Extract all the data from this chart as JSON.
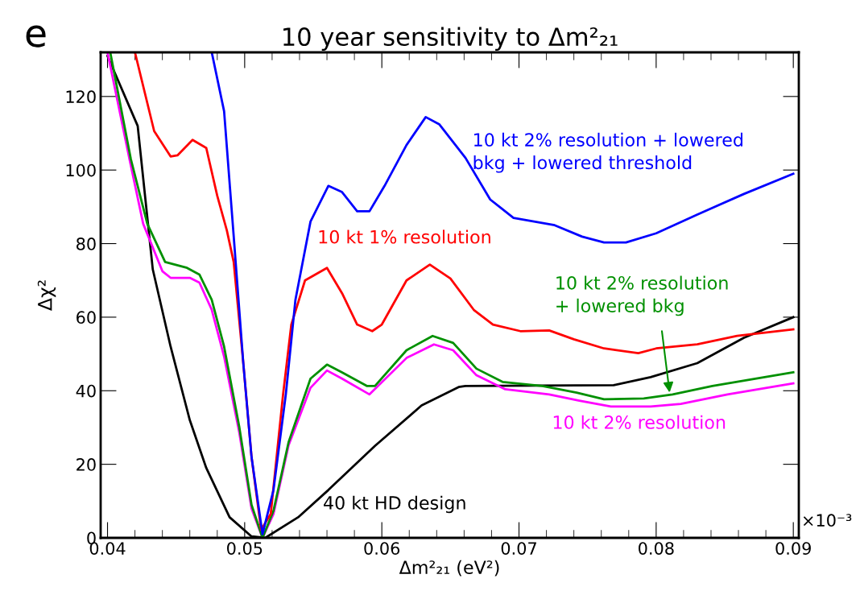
{
  "chart_data": {
    "type": "line",
    "title": "10 year sensitivity to Δm²₂₁",
    "xlabel": "Δm²₂₁ (eV²)",
    "ylabel": "Δχ²",
    "xlim": [
      0.0395,
      0.0904
    ],
    "xticks": [
      {
        "value": 0.04,
        "label": "0.04"
      },
      {
        "value": 0.05,
        "label": "0.05"
      },
      {
        "value": 0.06,
        "label": "0.06"
      },
      {
        "value": 0.07,
        "label": "0.07"
      },
      {
        "value": 0.08,
        "label": "0.08"
      },
      {
        "value": 0.09,
        "label": "0.09"
      }
    ],
    "ylim": [
      0,
      132
    ],
    "yticks": [
      0,
      20,
      40,
      60,
      80,
      100,
      120
    ],
    "grid": false,
    "legend": false,
    "marker": "none",
    "line_style": "solid",
    "annotations": [
      "×10⁻³",
      "e"
    ],
    "series": [
      {
        "name": "40 kt HD design",
        "color": "#000000",
        "x": [
          0.04,
          0.0422,
          0.0433,
          0.0446,
          0.046,
          0.0472,
          0.0489,
          0.0505,
          0.0515,
          0.0539,
          0.0561,
          0.0595,
          0.0629,
          0.0656,
          0.0661,
          0.0769,
          0.0796,
          0.083,
          0.0864,
          0.09
        ],
        "values": [
          131,
          112,
          73,
          52,
          32,
          19,
          5.6,
          0.4,
          0,
          5.6,
          13,
          25,
          36,
          41,
          41.3,
          41.5,
          43.7,
          47.5,
          54.4,
          60
        ]
      },
      {
        "name": "10 kt 2% resolution",
        "color": "#ff00ff",
        "x": [
          0.04,
          0.0416,
          0.0426,
          0.044,
          0.0446,
          0.046,
          0.0467,
          0.0476,
          0.0485,
          0.0496,
          0.0505,
          0.0513,
          0.0521,
          0.0532,
          0.0548,
          0.056,
          0.0571,
          0.0591,
          0.0618,
          0.0638,
          0.0652,
          0.0669,
          0.069,
          0.0722,
          0.0744,
          0.0767,
          0.0796,
          0.0818,
          0.0852,
          0.09
        ],
        "values": [
          132,
          103,
          85.4,
          72.5,
          70.7,
          70.7,
          69.4,
          62,
          49.3,
          28.8,
          8,
          0,
          6.5,
          25.2,
          40.8,
          45.5,
          43.3,
          39,
          48.9,
          52.6,
          51,
          44.2,
          40.4,
          39,
          37.3,
          35.7,
          35.7,
          36.4,
          39,
          42
        ]
      },
      {
        "name": "10 kt 2% resolution\n+ lowered bkg",
        "color": "#009000",
        "x": [
          0.0402,
          0.0417,
          0.0429,
          0.0442,
          0.0458,
          0.0467,
          0.0476,
          0.0485,
          0.0496,
          0.0505,
          0.0513,
          0.0521,
          0.0532,
          0.0548,
          0.056,
          0.0571,
          0.0589,
          0.0595,
          0.0618,
          0.0637,
          0.0652,
          0.0669,
          0.0688,
          0.0717,
          0.0742,
          0.0762,
          0.0791,
          0.0812,
          0.0841,
          0.09
        ],
        "values": [
          132,
          103,
          85.4,
          75,
          73.4,
          71.6,
          64.7,
          52,
          30.3,
          9,
          0,
          7.4,
          26,
          43.3,
          47.1,
          45,
          41.3,
          41.3,
          51,
          54.9,
          53,
          46,
          42.4,
          41.3,
          39.5,
          37.7,
          37.9,
          39,
          41.3,
          45
        ]
      },
      {
        "name": "10 kt 1% resolution",
        "color": "#ff0000",
        "x": [
          0.042,
          0.0434,
          0.0446,
          0.0451,
          0.0462,
          0.0472,
          0.048,
          0.0487,
          0.0492,
          0.0499,
          0.0505,
          0.0512,
          0.0519,
          0.0528,
          0.0534,
          0.0544,
          0.056,
          0.0571,
          0.0582,
          0.0593,
          0.06,
          0.0618,
          0.0635,
          0.065,
          0.0667,
          0.0681,
          0.0701,
          0.0722,
          0.074,
          0.0762,
          0.0787,
          0.08,
          0.083,
          0.0859,
          0.09
        ],
        "values": [
          132,
          110.6,
          103.7,
          104,
          108.2,
          106,
          93,
          83.6,
          75,
          47.5,
          22,
          2.2,
          6.5,
          39,
          58,
          70,
          73.4,
          66.5,
          58,
          56.2,
          58,
          70,
          74.3,
          70.5,
          62,
          58,
          56.2,
          56.4,
          54,
          51.5,
          50.2,
          51.5,
          52.6,
          54.9,
          56.7
        ]
      },
      {
        "name": "10 kt 2% resolution + lowered\nbkg + lowered threshold",
        "color": "#0000ff",
        "x": [
          0.0476,
          0.0485,
          0.0492,
          0.0499,
          0.0505,
          0.0513,
          0.0521,
          0.053,
          0.0537,
          0.0548,
          0.0561,
          0.0571,
          0.0582,
          0.0591,
          0.0602,
          0.0618,
          0.0632,
          0.0642,
          0.0661,
          0.0679,
          0.0696,
          0.0726,
          0.0746,
          0.0762,
          0.0778,
          0.08,
          0.083,
          0.0864,
          0.09
        ],
        "values": [
          132,
          116,
          82,
          47.5,
          22,
          1,
          13,
          39,
          64.7,
          86,
          95.7,
          94,
          88.8,
          88.8,
          95.7,
          106.8,
          114.4,
          112.4,
          103.3,
          92,
          87,
          85,
          81.9,
          80.3,
          80.3,
          82.8,
          87.9,
          93.5,
          99
        ]
      }
    ]
  }
}
